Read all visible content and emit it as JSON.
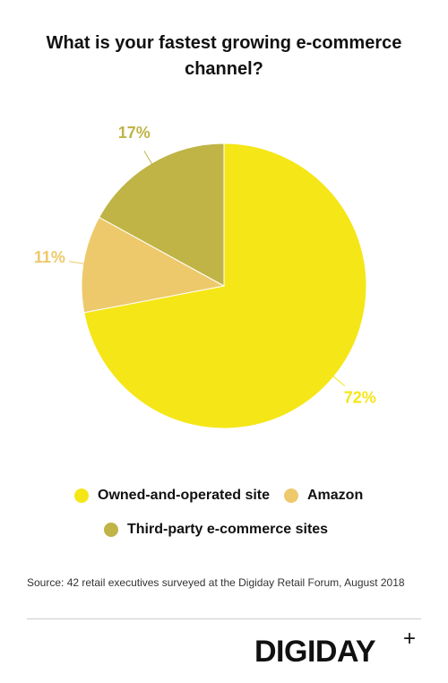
{
  "chart_data": {
    "type": "pie",
    "title": "What is your fastest growing e-commerce channel?",
    "categories": [
      "Owned-and-operated site",
      "Amazon",
      "Third-party e-commerce sites"
    ],
    "values": [
      72,
      11,
      17
    ],
    "value_labels": [
      "72%",
      "11%",
      "17%"
    ],
    "colors": [
      "#f5e617",
      "#eec96b",
      "#bfb445"
    ],
    "source": "Source: 42 retail executives surveyed at the Digiday Retail Forum, August 2018",
    "brand": "DIGIDAY",
    "brand_mark": "+"
  }
}
